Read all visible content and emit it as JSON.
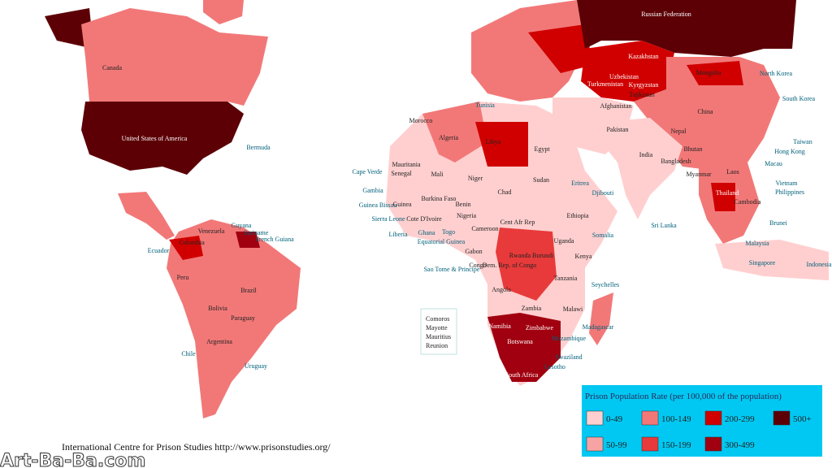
{
  "legend": {
    "title": "Prison Population Rate (per 100,000 of the population)",
    "items": [
      {
        "label": "0-49",
        "color": "#ffcfcf"
      },
      {
        "label": "50-99",
        "color": "#f7a3a3"
      },
      {
        "label": "100-149",
        "color": "#f27878"
      },
      {
        "label": "150-199",
        "color": "#e83a3a"
      },
      {
        "label": "200-299",
        "color": "#d00000"
      },
      {
        "label": "300-499",
        "color": "#a0000f"
      },
      {
        "label": "500+",
        "color": "#5c0006"
      }
    ]
  },
  "credit": "International Centre for Prison Studies http://www.prisonstudies.org/",
  "watermark": "Art-Ba-Ba.com",
  "island_list": [
    "Comoros",
    "Mayotte",
    "Mauritius",
    "Reunion"
  ],
  "labels": [
    "Russian Federation",
    "Canada",
    "United States of America",
    "Bermuda",
    "Kazakhstan",
    "Mongolia",
    "Uzbekistan",
    "Turkmenistan",
    "Kyrgyzstan",
    "Tajikistan",
    "Afghanistan",
    "Pakistan",
    "North Korea",
    "South Korea",
    "China",
    "Nepal",
    "India",
    "Bhutan",
    "Bangladesh",
    "Myanmar",
    "Laos",
    "Thailand",
    "Vietnam",
    "Cambodia",
    "Philippines",
    "Taiwan",
    "Hong Kong",
    "Macau",
    "Brunei",
    "Malaysia",
    "Singapore",
    "Indonesia",
    "Sri Lanka",
    "Tunisia",
    "Morocco",
    "Algeria",
    "Libya",
    "Egypt",
    "Mauritania",
    "Senegal",
    "Mali",
    "Niger",
    "Sudan",
    "Chad",
    "Cape Verde",
    "Gambia",
    "Guinea Bissau",
    "Sierra Leone",
    "Liberia",
    "Burkina Faso",
    "Guinea",
    "Benin",
    "Nigeria",
    "Cote D'Ivoire",
    "Ghana",
    "Togo",
    "Cameroon",
    "Cent Afr Rep",
    "Eritrea",
    "Djibouti",
    "Ethiopia",
    "Somalia",
    "Equatorial Guinea",
    "Gabon",
    "Sao Tome & Principe",
    "Congo",
    "Uganda",
    "Kenya",
    "Rwanda Burundi",
    "Dem. Rep. of Congo",
    "Tanzania",
    "Seychelles",
    "Angola",
    "Zambia",
    "Malawi",
    "Madagascar",
    "Namibia",
    "Zimbabwe",
    "Mozambique",
    "Botswana",
    "Swaziland",
    "Lesotho",
    "South Africa",
    "Guyana",
    "Suriname",
    "French Guiana",
    "Venezuela",
    "Colombia",
    "Ecuador",
    "Peru",
    "Brazil",
    "Bolivia",
    "Paraguay",
    "Chile",
    "Argentina",
    "Uruguay"
  ]
}
